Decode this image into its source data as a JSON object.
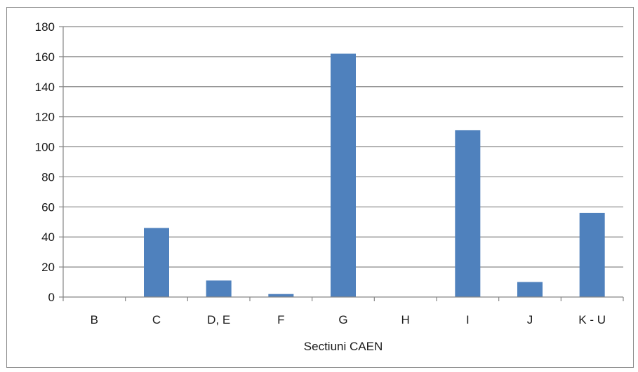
{
  "chart_data": {
    "type": "bar",
    "title": "",
    "xlabel": "Sectiuni CAEN",
    "ylabel": "",
    "categories": [
      "B",
      "C",
      "D, E",
      "F",
      "G",
      "H",
      "I",
      "J",
      "K - U"
    ],
    "values": [
      0,
      46,
      11,
      2,
      162,
      0,
      111,
      10,
      56
    ],
    "ylim": [
      0,
      180
    ],
    "yticks": [
      0,
      20,
      40,
      60,
      80,
      100,
      120,
      140,
      160,
      180
    ],
    "ytick_labels": [
      "0",
      "20",
      "40",
      "60",
      "80",
      "100",
      "120",
      "140",
      "160",
      "180"
    ],
    "grid": true,
    "legend": "none",
    "bar_color": "#4f81bd",
    "grid_color": "#868686"
  }
}
